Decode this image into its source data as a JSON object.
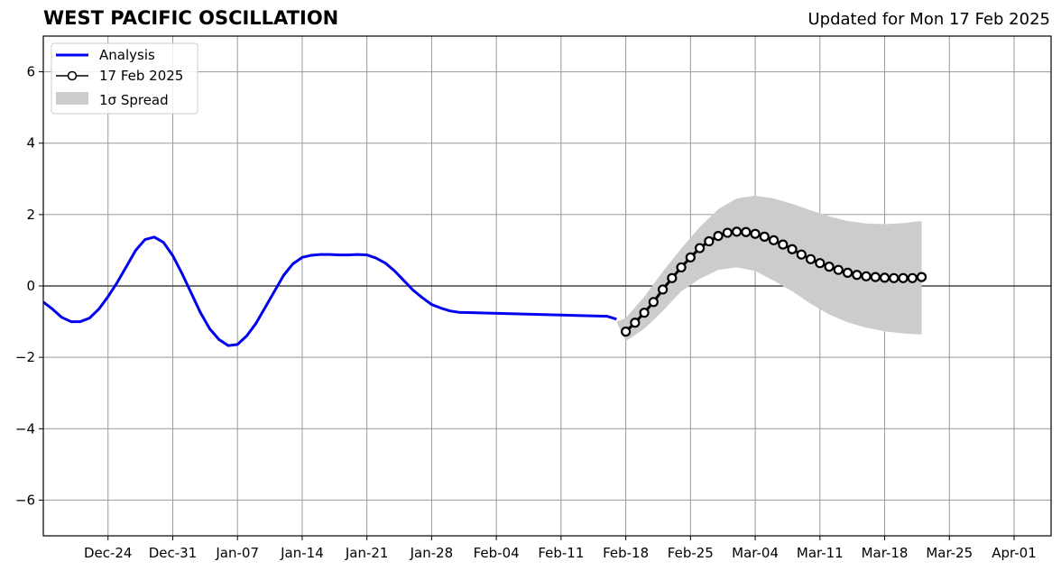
{
  "title": "WEST PACIFIC OSCILLATION",
  "updated": "Updated for Mon 17 Feb 2025",
  "colors": {
    "analysis": "#0000ee",
    "forecast": "#000000",
    "spread": "#cccccc",
    "grid": "#999999"
  },
  "chart_data": {
    "type": "line",
    "title": "WEST PACIFIC OSCILLATION",
    "xlabel": "",
    "ylabel": "",
    "grid": true,
    "legend_position": "top-left",
    "ylim": [
      -7,
      7
    ],
    "xlim": [
      "2024-12-17",
      "2025-04-05"
    ],
    "yticks": [
      -6,
      -4,
      -2,
      0,
      2,
      4,
      6
    ],
    "ytick_labels": [
      "−6",
      "−4",
      "−2",
      "0",
      "2",
      "4",
      "6"
    ],
    "xticks": [
      {
        "date": "2024-12-24",
        "label": "Dec-24"
      },
      {
        "date": "2024-12-31",
        "label": "Dec-31"
      },
      {
        "date": "2025-01-07",
        "label": "Jan-07"
      },
      {
        "date": "2025-01-14",
        "label": "Jan-14"
      },
      {
        "date": "2025-01-21",
        "label": "Jan-21"
      },
      {
        "date": "2025-01-28",
        "label": "Jan-28"
      },
      {
        "date": "2025-02-04",
        "label": "Feb-04"
      },
      {
        "date": "2025-02-11",
        "label": "Feb-11"
      },
      {
        "date": "2025-02-18",
        "label": "Feb-18"
      },
      {
        "date": "2025-02-25",
        "label": "Feb-25"
      },
      {
        "date": "2025-03-04",
        "label": "Mar-04"
      },
      {
        "date": "2025-03-11",
        "label": "Mar-11"
      },
      {
        "date": "2025-03-18",
        "label": "Mar-18"
      },
      {
        "date": "2025-03-25",
        "label": "Mar-25"
      },
      {
        "date": "2025-04-01",
        "label": "Apr-01"
      }
    ],
    "legend": [
      "Analysis",
      "17 Feb 2025",
      "1σ Spread"
    ],
    "series": [
      {
        "name": "Analysis",
        "style": "line",
        "points": [
          [
            "2024-12-17",
            -0.45
          ],
          [
            "2024-12-18",
            -0.65
          ],
          [
            "2024-12-19",
            -0.88
          ],
          [
            "2024-12-20",
            -1.0
          ],
          [
            "2024-12-21",
            -1.0
          ],
          [
            "2024-12-22",
            -0.9
          ],
          [
            "2024-12-23",
            -0.65
          ],
          [
            "2024-12-24",
            -0.3
          ],
          [
            "2024-12-25",
            0.1
          ],
          [
            "2024-12-26",
            0.55
          ],
          [
            "2024-12-27",
            1.0
          ],
          [
            "2024-12-28",
            1.3
          ],
          [
            "2024-12-29",
            1.37
          ],
          [
            "2024-12-30",
            1.22
          ],
          [
            "2024-12-31",
            0.85
          ],
          [
            "2025-01-01",
            0.35
          ],
          [
            "2025-01-02",
            -0.2
          ],
          [
            "2025-01-03",
            -0.75
          ],
          [
            "2025-01-04",
            -1.2
          ],
          [
            "2025-01-05",
            -1.5
          ],
          [
            "2025-01-06",
            -1.67
          ],
          [
            "2025-01-07",
            -1.64
          ],
          [
            "2025-01-08",
            -1.4
          ],
          [
            "2025-01-09",
            -1.05
          ],
          [
            "2025-01-10",
            -0.6
          ],
          [
            "2025-01-11",
            -0.15
          ],
          [
            "2025-01-12",
            0.3
          ],
          [
            "2025-01-13",
            0.62
          ],
          [
            "2025-01-14",
            0.8
          ],
          [
            "2025-01-15",
            0.86
          ],
          [
            "2025-01-16",
            0.88
          ],
          [
            "2025-01-17",
            0.88
          ],
          [
            "2025-01-18",
            0.87
          ],
          [
            "2025-01-19",
            0.87
          ],
          [
            "2025-01-20",
            0.88
          ],
          [
            "2025-01-21",
            0.87
          ],
          [
            "2025-01-22",
            0.78
          ],
          [
            "2025-01-23",
            0.64
          ],
          [
            "2025-01-24",
            0.42
          ],
          [
            "2025-01-25",
            0.15
          ],
          [
            "2025-01-26",
            -0.12
          ],
          [
            "2025-01-27",
            -0.33
          ],
          [
            "2025-01-28",
            -0.52
          ],
          [
            "2025-01-29",
            -0.62
          ],
          [
            "2025-01-30",
            -0.7
          ],
          [
            "2025-01-31",
            -0.74
          ],
          [
            "2025-02-16",
            -0.85
          ],
          [
            "2025-02-17",
            -0.93
          ]
        ]
      },
      {
        "name": "17 Feb 2025",
        "style": "line-marker",
        "points": [
          [
            "2025-02-18",
            -1.28
          ],
          [
            "2025-02-19",
            -1.03
          ],
          [
            "2025-02-20",
            -0.75
          ],
          [
            "2025-02-21",
            -0.45
          ],
          [
            "2025-02-22",
            -0.1
          ],
          [
            "2025-02-23",
            0.22
          ],
          [
            "2025-02-24",
            0.52
          ],
          [
            "2025-02-25",
            0.8
          ],
          [
            "2025-02-26",
            1.06
          ],
          [
            "2025-02-27",
            1.25
          ],
          [
            "2025-02-28",
            1.4
          ],
          [
            "2025-03-01",
            1.49
          ],
          [
            "2025-03-02",
            1.52
          ],
          [
            "2025-03-03",
            1.51
          ],
          [
            "2025-03-04",
            1.46
          ],
          [
            "2025-03-05",
            1.38
          ],
          [
            "2025-03-06",
            1.28
          ],
          [
            "2025-03-07",
            1.16
          ],
          [
            "2025-03-08",
            1.03
          ],
          [
            "2025-03-09",
            0.88
          ],
          [
            "2025-03-10",
            0.75
          ],
          [
            "2025-03-11",
            0.64
          ],
          [
            "2025-03-12",
            0.54
          ],
          [
            "2025-03-13",
            0.45
          ],
          [
            "2025-03-14",
            0.37
          ],
          [
            "2025-03-15",
            0.31
          ],
          [
            "2025-03-16",
            0.27
          ],
          [
            "2025-03-17",
            0.25
          ],
          [
            "2025-03-18",
            0.23
          ],
          [
            "2025-03-19",
            0.22
          ],
          [
            "2025-03-20",
            0.22
          ],
          [
            "2025-03-21",
            0.22
          ],
          [
            "2025-03-22",
            0.25
          ]
        ]
      },
      {
        "name": "1σ Spread",
        "style": "band",
        "points": [
          [
            "2025-02-17",
            -1.0,
            -1.0
          ],
          [
            "2025-02-18",
            -1.55,
            -0.9
          ],
          [
            "2025-02-20",
            -1.2,
            -0.3
          ],
          [
            "2025-02-22",
            -0.7,
            0.4
          ],
          [
            "2025-02-24",
            -0.15,
            1.05
          ],
          [
            "2025-02-26",
            0.2,
            1.65
          ],
          [
            "2025-02-28",
            0.45,
            2.15
          ],
          [
            "2025-03-02",
            0.52,
            2.45
          ],
          [
            "2025-03-04",
            0.42,
            2.53
          ],
          [
            "2025-03-06",
            0.15,
            2.45
          ],
          [
            "2025-03-08",
            -0.15,
            2.3
          ],
          [
            "2025-03-10",
            -0.5,
            2.12
          ],
          [
            "2025-03-12",
            -0.8,
            1.95
          ],
          [
            "2025-03-14",
            -1.02,
            1.82
          ],
          [
            "2025-03-16",
            -1.17,
            1.75
          ],
          [
            "2025-03-18",
            -1.27,
            1.73
          ],
          [
            "2025-03-20",
            -1.33,
            1.76
          ],
          [
            "2025-03-22",
            -1.36,
            1.82
          ]
        ]
      }
    ]
  }
}
